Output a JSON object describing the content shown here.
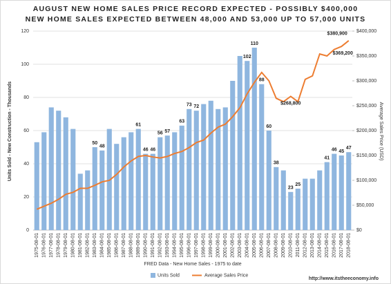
{
  "chart_data": {
    "type": "bar-line",
    "title": "AUGUST NEW HOME SALES PRICE RECORD EXPECTED - POSSIBLY $400,000",
    "subtitle": "NEW HOME SALES EXPECTED BETWEEN 48,000 AND 53,000 UP TO 57,000 UNITS",
    "xlabel": "FRED Data - New Home Sales - 1975 to date",
    "ylabel": "Units Sold - New Construction - Thousands",
    "y2label": "Average Sales Price (USD)",
    "source": "http://www.itstheeconomy.info",
    "categories": [
      "1975-08-01",
      "1976-08-01",
      "1977-08-01",
      "1978-08-01",
      "1979-08-01",
      "1980-08-01",
      "1981-08-01",
      "1982-08-01",
      "1983-08-01",
      "1984-08-01",
      "1985-08-01",
      "1986-08-01",
      "1987-08-01",
      "1988-08-01",
      "1989-08-01",
      "1990-08-01",
      "1991-08-01",
      "1992-08-01",
      "1993-08-01",
      "1994-08-01",
      "1995-08-01",
      "1996-08-01",
      "1997-08-01",
      "1998-08-01",
      "1999-08-01",
      "2000-08-01",
      "2001-08-01",
      "2002-08-01",
      "2003-08-01",
      "2004-08-01",
      "2005-08-01",
      "2006-08-01",
      "2007-08-01",
      "2008-08-01",
      "2009-08-01",
      "2010-08-01",
      "2011-08-01",
      "2012-08-01",
      "2013-08-01",
      "2014-08-01",
      "2015-08-01",
      "2016-08-01",
      "2017-08-01",
      "2018-08-01"
    ],
    "series": [
      {
        "name": "Units Sold",
        "type": "bar",
        "color": "#8fb6df",
        "values": [
          53,
          59,
          74,
          72,
          68,
          61,
          34,
          36,
          50,
          48,
          61,
          52,
          56,
          59,
          61,
          46,
          46,
          56,
          57,
          59,
          63,
          73,
          72,
          76,
          78,
          73,
          74,
          90,
          105,
          102,
          110,
          88,
          60,
          38,
          36,
          23,
          25,
          31,
          31,
          36,
          41,
          46,
          45,
          47
        ],
        "value_labels": [
          null,
          null,
          null,
          null,
          null,
          null,
          null,
          null,
          "50",
          "48",
          null,
          null,
          null,
          null,
          "61",
          "46",
          "46",
          "56",
          "57",
          null,
          "63",
          "73",
          "72",
          null,
          null,
          null,
          null,
          null,
          null,
          "102",
          "110",
          "88",
          "60",
          "38",
          null,
          "23",
          "25",
          null,
          null,
          null,
          "41",
          "46",
          "45",
          "47"
        ]
      },
      {
        "name": "Average Sales Price",
        "type": "line",
        "axis": "y2",
        "color": "#ed7d31",
        "values": [
          42000,
          48000,
          54000,
          62000,
          72000,
          76000,
          84000,
          84000,
          90000,
          97000,
          100000,
          112000,
          127000,
          139000,
          148000,
          150000,
          147000,
          145000,
          148000,
          154000,
          158000,
          166000,
          176000,
          181000,
          195000,
          207000,
          213000,
          228000,
          246000,
          274000,
          297000,
          317000,
          300000,
          265000,
          258000,
          268800,
          258000,
          303000,
          310000,
          354000,
          350000,
          363000,
          369200,
          380900
        ],
        "value_labels": [
          null,
          null,
          null,
          null,
          null,
          null,
          null,
          null,
          null,
          null,
          null,
          null,
          null,
          null,
          null,
          null,
          null,
          null,
          null,
          null,
          null,
          null,
          null,
          null,
          null,
          null,
          null,
          null,
          null,
          null,
          null,
          null,
          null,
          null,
          null,
          "$268,800",
          null,
          null,
          null,
          null,
          null,
          null,
          "$369,200",
          "$380,900"
        ]
      }
    ],
    "ylim": [
      0,
      120
    ],
    "yticks": [
      0,
      20,
      40,
      60,
      80,
      100,
      120
    ],
    "y2lim": [
      0,
      400000
    ],
    "y2ticks": [
      {
        "value": 0,
        "label": "$0"
      },
      {
        "value": 50000,
        "label": "$50,000"
      },
      {
        "value": 100000,
        "label": "$100,000"
      },
      {
        "value": 150000,
        "label": "$150,000"
      },
      {
        "value": 200000,
        "label": "$200,000"
      },
      {
        "value": 250000,
        "label": "$250,000"
      },
      {
        "value": 300000,
        "label": "$300,000"
      },
      {
        "value": 350000,
        "label": "$350,000"
      },
      {
        "value": 400000,
        "label": "$400,000"
      }
    ],
    "grid": true
  }
}
